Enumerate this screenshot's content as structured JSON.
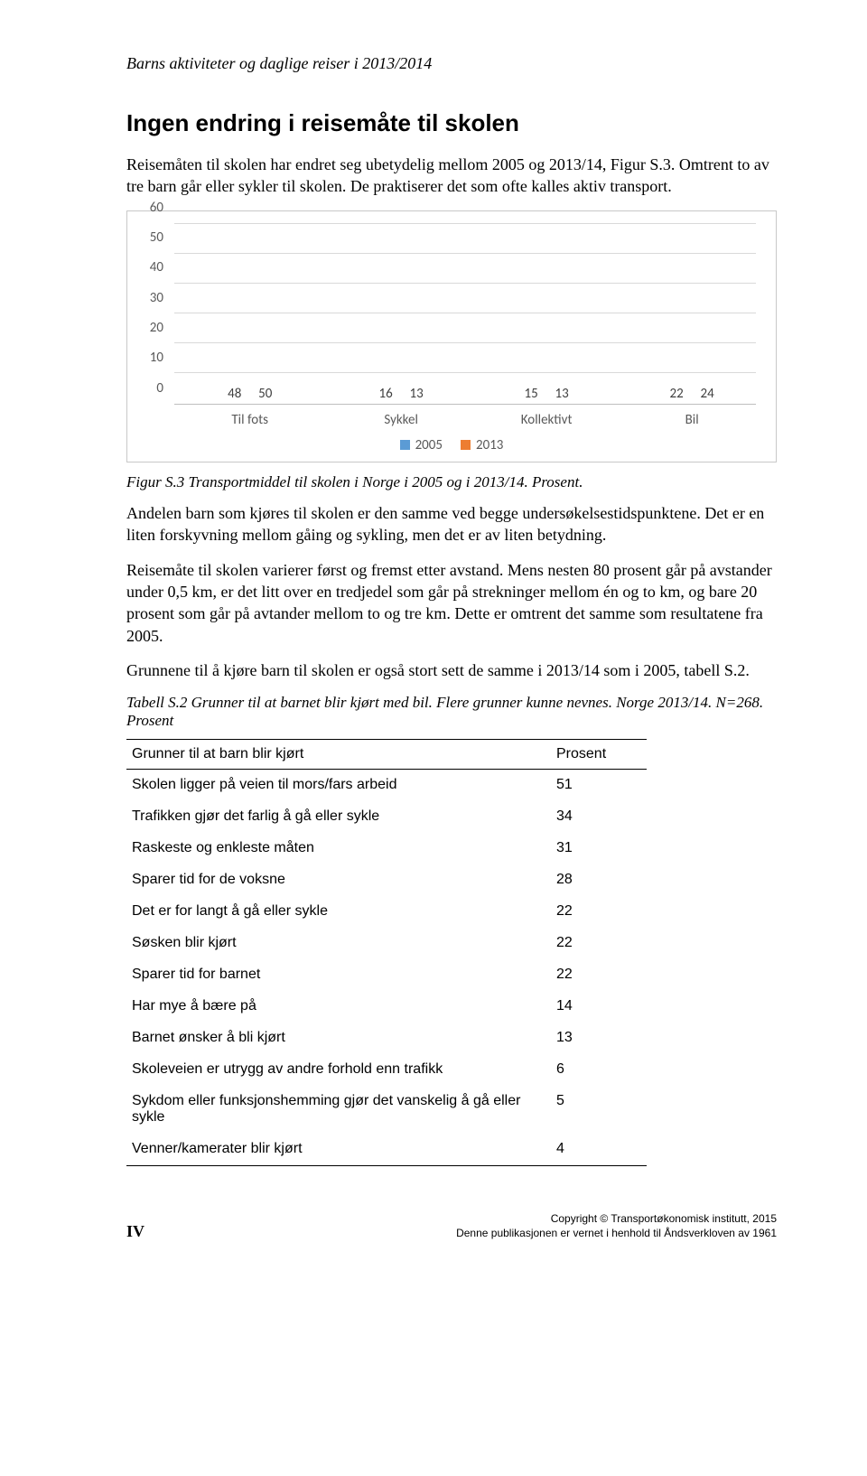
{
  "header": {
    "running_title": "Barns aktiviteter og daglige reiser i 2013/2014"
  },
  "section": {
    "heading": "Ingen endring i reisemåte til skolen",
    "para1": "Reisemåten til skolen har endret seg ubetydelig mellom 2005 og 2013/14, Figur S.3. Omtrent to av tre barn går eller sykler til skolen. De praktiserer det som ofte kalles aktiv transport."
  },
  "chart": {
    "type": "bar",
    "ylim": [
      0,
      60
    ],
    "ytick_step": 10,
    "yticks": [
      "0",
      "10",
      "20",
      "30",
      "40",
      "50",
      "60"
    ],
    "categories": [
      "Til fots",
      "Sykkel",
      "Kollektivt",
      "Bil"
    ],
    "series": [
      {
        "name": "2005",
        "color": "#5b9bd5",
        "values": [
          48,
          16,
          15,
          22
        ]
      },
      {
        "name": "2013",
        "color": "#ed7d31",
        "values": [
          50,
          13,
          13,
          24
        ]
      }
    ],
    "grid_color": "#d9d9d9",
    "axis_color": "#bfbfbf",
    "label_color": "#595959",
    "label_fontsize": 15
  },
  "fig_caption": "Figur S.3 Transportmiddel til skolen i Norge i 2005 og i 2013/14. Prosent.",
  "body": {
    "p2": "Andelen barn som kjøres til skolen er den samme ved begge undersøkelsestidspunktene. Det er en liten forskyvning mellom gåing og sykling, men det er av liten betydning.",
    "p3": "Reisemåte til skolen varierer først og fremst etter avstand. Mens nesten 80 prosent går på avstander under 0,5 km, er det litt over en tredjedel som går på strekninger mellom én og to km, og bare 20 prosent som går på avtander mellom to og tre km. Dette er omtrent det samme som resultatene fra 2005.",
    "p4": "Grunnene til å kjøre barn til skolen er også stort sett de samme i 2013/14 som i 2005, tabell S.2."
  },
  "table_caption": "Tabell S.2 Grunner til at barnet blir kjørt med bil. Flere grunner kunne nevnes. Norge 2013/14. N=268. Prosent",
  "table": {
    "header": {
      "reason": "Grunner til at barn blir kjørt",
      "value": "Prosent"
    },
    "rows": [
      {
        "reason": "Skolen ligger på veien til mors/fars arbeid",
        "value": "51"
      },
      {
        "reason": "Trafikken gjør det farlig å gå eller sykle",
        "value": "34"
      },
      {
        "reason": "Raskeste og enkleste måten",
        "value": "31"
      },
      {
        "reason": "Sparer tid for de voksne",
        "value": "28"
      },
      {
        "reason": "Det er for langt å gå eller sykle",
        "value": "22"
      },
      {
        "reason": "Søsken blir kjørt",
        "value": "22"
      },
      {
        "reason": "Sparer tid for barnet",
        "value": "22"
      },
      {
        "reason": "Har mye å bære på",
        "value": "14"
      },
      {
        "reason": "Barnet ønsker å bli kjørt",
        "value": "13"
      },
      {
        "reason": "Skoleveien er utrygg av andre forhold enn trafikk",
        "value": "6"
      },
      {
        "reason": "Sykdom eller funksjonshemming gjør det vanskelig å gå eller sykle",
        "value": "5"
      },
      {
        "reason": "Venner/kamerater blir kjørt",
        "value": "4"
      }
    ]
  },
  "footer": {
    "page_num": "IV",
    "copyright": "Copyright © Transportøkonomisk institutt, 2015",
    "notice": "Denne publikasjonen er vernet i henhold til Åndsverkloven av 1961"
  }
}
